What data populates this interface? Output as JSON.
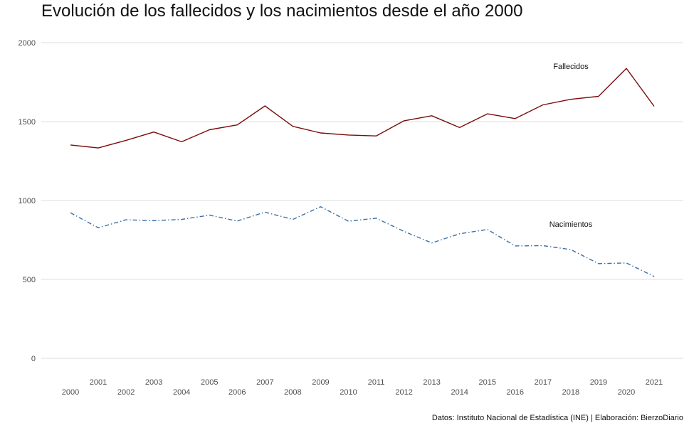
{
  "chart_data": {
    "type": "line",
    "title": "Evolución de los fallecidos y los nacimientos desde el año 2000",
    "caption": "Datos: Instituto Nacional de Estadística (INE) | Elaboración: BierzoDiario",
    "x": [
      "2000",
      "2001",
      "2002",
      "2003",
      "2004",
      "2005",
      "2006",
      "2007",
      "2008",
      "2009",
      "2010",
      "2011",
      "2012",
      "2013",
      "2014",
      "2015",
      "2016",
      "2017",
      "2018",
      "2019",
      "2020",
      "2021"
    ],
    "ylim": [
      0,
      2000
    ],
    "yticks": [
      0,
      500,
      1000,
      1500,
      2000
    ],
    "grid": true,
    "series": [
      {
        "name": "Fallecidos",
        "color": "#7a0c0c",
        "dash": "solid",
        "values": [
          1352,
          1333,
          1381,
          1434,
          1372,
          1448,
          1479,
          1599,
          1470,
          1428,
          1415,
          1409,
          1505,
          1537,
          1462,
          1549,
          1519,
          1606,
          1641,
          1660,
          1837,
          1597
        ]
      },
      {
        "name": "Nacimientos",
        "color": "#3a6fa8",
        "dash": "dashdot",
        "values": [
          922,
          827,
          878,
          872,
          880,
          907,
          870,
          926,
          880,
          961,
          869,
          888,
          804,
          731,
          789,
          816,
          712,
          714,
          689,
          600,
          604,
          519
        ]
      }
    ]
  }
}
